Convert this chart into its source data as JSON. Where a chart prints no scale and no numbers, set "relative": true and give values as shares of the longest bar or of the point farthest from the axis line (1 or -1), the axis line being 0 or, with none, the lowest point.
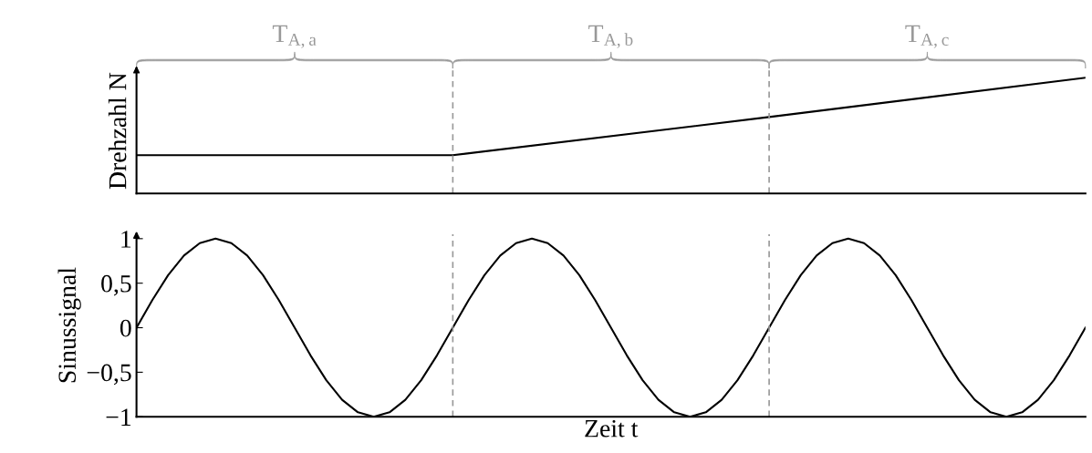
{
  "chart_data": [
    {
      "type": "line",
      "ylabel": "Drehzahl N",
      "categories": [
        null,
        null,
        null,
        null
      ],
      "relative": true,
      "tick_labels": false,
      "series": [
        {
          "color": "#000000",
          "values": [
            0.33,
            0.33,
            0.66,
            1
          ]
        }
      ],
      "annotations": [
        "T$_{A,a}$",
        "T$_{A,b}$",
        "T$_{A,c}$"
      ],
      "grid": false,
      "legend": false
    },
    {
      "type": "line",
      "ylabel": "Sinussignal",
      "xlabel": "Zeit t",
      "tick_labels": "y",
      "categories": [
        null,
        null,
        null,
        null,
        null,
        null,
        null,
        null,
        null,
        null,
        null,
        null,
        null,
        null,
        null,
        null,
        null,
        null,
        null,
        null,
        null,
        null,
        null,
        null,
        null,
        null,
        null,
        null,
        null,
        null,
        null,
        null,
        null,
        null,
        null,
        null,
        null,
        null,
        null,
        null,
        null,
        null,
        null,
        null,
        null,
        null,
        null,
        null,
        null,
        null,
        null,
        null,
        null,
        null,
        null,
        null,
        null,
        null,
        null,
        null,
        null
      ],
      "series": [
        {
          "color": "#000000",
          "values": [
            0,
            0.31,
            0.59,
            0.81,
            0.95,
            1,
            0.95,
            0.81,
            0.59,
            0.31,
            0,
            -0.31,
            -0.59,
            -0.81,
            -0.95,
            -1,
            -0.95,
            -0.81,
            -0.59,
            -0.31,
            0,
            0.31,
            0.59,
            0.81,
            0.95,
            1,
            0.95,
            0.81,
            0.59,
            0.31,
            0,
            -0.31,
            -0.59,
            -0.81,
            -0.95,
            -1,
            -0.95,
            -0.81,
            -0.59,
            -0.31,
            0,
            0.31,
            0.59,
            0.81,
            0.95,
            1,
            0.95,
            0.81,
            0.59,
            0.31,
            0,
            -0.31,
            -0.59,
            -0.81,
            -0.95,
            -1,
            -0.95,
            -0.81,
            -0.59,
            -0.31,
            0
          ]
        }
      ],
      "ylim": [
        -1,
        1.05
      ],
      "yticks": [
        {
          "value": -1,
          "label": "−1"
        },
        {
          "value": -0.5,
          "label": "−0,5"
        },
        0,
        {
          "value": 0.5,
          "label": "0,5"
        },
        1
      ],
      "grid": false,
      "legend": false
    }
  ]
}
